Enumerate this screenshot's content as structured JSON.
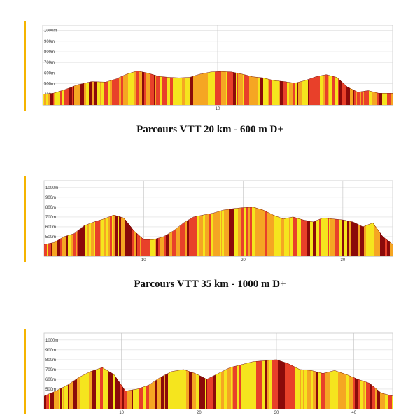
{
  "chart_data": [
    {
      "type": "area",
      "title": "",
      "xlabel": "",
      "ylabel": "",
      "ylim": [
        300,
        1050
      ],
      "xlim": [
        0,
        20
      ],
      "grid": true,
      "y_ticks": [
        400,
        500,
        600,
        700,
        800,
        900,
        1000
      ],
      "y_tick_labels": [
        "400m",
        "500m",
        "600m",
        "700m",
        "800m",
        "900m",
        "1000m"
      ],
      "x_ticks": [
        10
      ],
      "x_tick_labels": [
        "10"
      ],
      "x": [
        0,
        0.6,
        1.2,
        2.0,
        2.8,
        3.6,
        4.2,
        4.8,
        5.4,
        6.0,
        6.6,
        7.2,
        7.8,
        8.4,
        9.0,
        9.6,
        10.2,
        10.8,
        11.4,
        12.0,
        12.6,
        13.2,
        13.8,
        14.4,
        15.0,
        15.6,
        16.2,
        16.8,
        17.4,
        18.0,
        18.6,
        19.2,
        20.0
      ],
      "values": [
        400,
        410,
        440,
        490,
        520,
        515,
        545,
        590,
        620,
        600,
        570,
        560,
        555,
        560,
        590,
        610,
        615,
        610,
        590,
        565,
        555,
        530,
        520,
        505,
        530,
        565,
        585,
        560,
        470,
        420,
        435,
        410,
        410
      ],
      "colors": {
        "low": "#f5e51e",
        "mid": "#f5a623",
        "high": "#e8402a",
        "steep": "#8b0a0a"
      }
    },
    {
      "type": "area",
      "title": "",
      "xlabel": "",
      "ylabel": "",
      "ylim": [
        300,
        1070
      ],
      "xlim": [
        0,
        35
      ],
      "grid": true,
      "y_ticks": [
        400,
        500,
        600,
        700,
        800,
        900,
        1000
      ],
      "y_tick_labels": [
        "400m",
        "500m",
        "600m",
        "700m",
        "800m",
        "900m",
        "1000m"
      ],
      "x_ticks": [
        10,
        20,
        30
      ],
      "x_tick_labels": [
        "10",
        "20",
        "30"
      ],
      "x": [
        0,
        1.0,
        2.0,
        3.0,
        4.0,
        5.0,
        6.0,
        7.0,
        8.0,
        9.0,
        10.0,
        11.0,
        12.0,
        13.0,
        14.0,
        15.0,
        16.0,
        17.0,
        18.0,
        19.0,
        20.0,
        21.0,
        22.0,
        23.0,
        24.0,
        25.0,
        26.0,
        27.0,
        28.0,
        29.0,
        30.0,
        31.0,
        32.0,
        33.0,
        34.0,
        35.0
      ],
      "values": [
        420,
        440,
        500,
        530,
        610,
        650,
        680,
        720,
        690,
        560,
        470,
        470,
        500,
        560,
        640,
        700,
        720,
        740,
        770,
        785,
        795,
        800,
        770,
        720,
        680,
        700,
        670,
        650,
        690,
        680,
        670,
        650,
        600,
        640,
        500,
        420
      ],
      "colors": {
        "low": "#f5e51e",
        "mid": "#f5a623",
        "high": "#e8402a",
        "steep": "#8b0a0a"
      }
    },
    {
      "type": "area",
      "title": "",
      "xlabel": "",
      "ylabel": "",
      "ylim": [
        300,
        1070
      ],
      "xlim": [
        0,
        45
      ],
      "grid": true,
      "y_ticks": [
        400,
        500,
        600,
        700,
        800,
        900,
        1000
      ],
      "y_tick_labels": [
        "400m",
        "500m",
        "600m",
        "700m",
        "800m",
        "900m",
        "1000m"
      ],
      "x_ticks": [
        10,
        20,
        30,
        40
      ],
      "x_tick_labels": [
        "10",
        "20",
        "30",
        "40"
      ],
      "x": [
        0,
        1.5,
        3.0,
        4.5,
        6.0,
        7.5,
        9.0,
        10.5,
        12.0,
        13.5,
        15.0,
        16.5,
        18.0,
        19.5,
        21.0,
        22.5,
        24.0,
        25.5,
        27.0,
        28.5,
        30.0,
        31.5,
        33.0,
        34.5,
        36.0,
        37.5,
        39.0,
        40.5,
        42.0,
        43.5,
        45.0
      ],
      "values": [
        430,
        480,
        540,
        620,
        680,
        720,
        650,
        480,
        500,
        540,
        620,
        680,
        700,
        660,
        600,
        660,
        720,
        750,
        780,
        790,
        800,
        760,
        700,
        690,
        660,
        690,
        650,
        600,
        560,
        460,
        430
      ],
      "colors": {
        "low": "#f5e51e",
        "mid": "#f5a623",
        "high": "#e8402a",
        "steep": "#8b0a0a"
      }
    }
  ],
  "captions": {
    "first": "Parcours VTT 20 km - 600 m D+",
    "second": "Parcours VTT 35 km - 1000 m D+"
  }
}
